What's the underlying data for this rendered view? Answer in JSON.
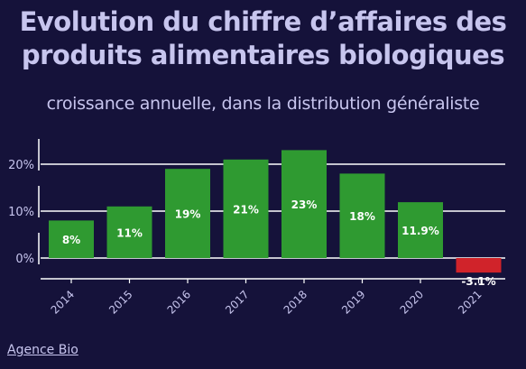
{
  "chart_data": {
    "type": "bar",
    "title": "Evolution du chiffre d’affaires des produits alimentaires biologiques",
    "title_lines": [
      "Evolution du chiffre d’affaires des",
      "produits alimentaires biologiques"
    ],
    "subtitle": "croissance annuelle, dans la distribution généraliste",
    "xlabel": "",
    "ylabel": "",
    "categories": [
      "2014",
      "2015",
      "2016",
      "2017",
      "2018",
      "2019",
      "2020",
      "2021"
    ],
    "values": [
      8,
      11,
      19,
      21,
      23,
      18,
      11.9,
      -3.1
    ],
    "data_labels": [
      "8%",
      "11%",
      "19%",
      "21%",
      "23%",
      "18%",
      "11.9%",
      "-3.1%"
    ],
    "y_ticks": [
      0,
      10,
      20
    ],
    "y_tick_labels": [
      "0%",
      "10%",
      "20%"
    ],
    "ylim": [
      -3.1,
      23
    ],
    "grid": true,
    "colors": {
      "positive": "#2f9a31",
      "negative": "#d0232a",
      "grid": "#ffffff",
      "text": "#c7c5ee",
      "background": "#15123a"
    }
  },
  "source": "Agence Bio"
}
